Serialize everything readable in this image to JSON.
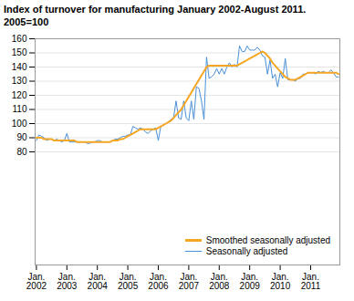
{
  "chart_data": {
    "type": "line",
    "title": "Index of turnover for manufacturing January 2002-August 2011.",
    "subtitle": "2005=100",
    "categories": [
      "Jan.\n2002",
      null,
      null,
      null,
      null,
      null,
      null,
      null,
      null,
      null,
      null,
      null,
      "Jan.\n2003",
      null,
      null,
      null,
      null,
      null,
      null,
      null,
      null,
      null,
      null,
      null,
      "Jan.\n2004",
      null,
      null,
      null,
      null,
      null,
      null,
      null,
      null,
      null,
      null,
      null,
      "Jan.\n2005",
      null,
      null,
      null,
      null,
      null,
      null,
      null,
      null,
      null,
      null,
      null,
      "Jan.\n2006",
      null,
      null,
      null,
      null,
      null,
      null,
      null,
      null,
      null,
      null,
      null,
      "Jan.\n2007",
      null,
      null,
      null,
      null,
      null,
      null,
      null,
      null,
      null,
      null,
      null,
      "Jan.\n2008",
      null,
      null,
      null,
      null,
      null,
      null,
      null,
      null,
      null,
      null,
      null,
      "Jan.\n2009",
      null,
      null,
      null,
      null,
      null,
      null,
      null,
      null,
      null,
      null,
      null,
      "Jan.\n2010",
      null,
      null,
      null,
      null,
      null,
      null,
      null,
      null,
      null,
      null,
      null,
      "Jan.\n2011",
      null,
      null,
      null,
      null,
      null,
      null,
      null,
      null,
      null,
      null,
      null
    ],
    "series": [
      {
        "name": "Smoothed seasonally adjusted",
        "color": "#F5A623",
        "values": [
          90,
          90,
          90,
          89,
          89,
          89,
          89,
          88,
          88,
          88,
          88,
          88,
          88,
          88,
          88,
          88,
          87,
          87,
          87,
          87,
          87,
          87,
          87,
          87,
          87,
          87,
          87,
          87,
          87,
          87,
          88,
          88,
          88,
          89,
          89,
          90,
          91,
          92,
          93,
          94,
          95,
          96,
          96,
          96,
          96,
          96,
          96,
          96,
          97,
          98,
          99,
          100,
          101,
          102,
          104,
          106,
          108,
          110,
          113,
          116,
          119,
          122,
          125,
          128,
          131,
          134,
          137,
          140,
          141,
          141,
          141,
          141,
          141,
          141,
          141,
          141,
          141,
          141,
          141,
          141,
          142,
          143,
          144,
          145,
          146,
          147,
          148,
          149,
          150,
          151,
          150,
          148,
          146,
          143,
          141,
          139,
          137,
          135,
          133,
          132,
          131,
          131,
          131,
          132,
          133,
          134,
          135,
          136,
          136,
          136,
          136,
          136,
          136,
          136,
          136,
          136,
          136,
          136,
          136,
          135
        ]
      },
      {
        "name": "Seasonally adjusted",
        "color": "#4A90D9",
        "values": [
          88,
          92,
          91,
          90,
          88,
          89,
          89,
          88,
          89,
          88,
          87,
          88,
          93,
          87,
          87,
          87,
          87,
          87,
          87,
          87,
          86,
          86,
          87,
          87,
          88,
          88,
          87,
          87,
          87,
          87,
          88,
          89,
          89,
          90,
          91,
          91,
          92,
          92,
          98,
          97,
          96,
          97,
          96,
          94,
          93,
          95,
          96,
          97,
          88,
          98,
          99,
          100,
          101,
          103,
          104,
          116,
          104,
          103,
          116,
          104,
          102,
          116,
          103,
          126,
          125,
          116,
          103,
          147,
          132,
          133,
          135,
          139,
          135,
          139,
          135,
          140,
          143,
          140,
          142,
          140,
          155,
          151,
          151,
          155,
          152,
          152,
          152,
          154,
          152,
          148,
          147,
          135,
          145,
          132,
          135,
          126,
          136,
          132,
          146,
          131,
          131,
          131,
          130,
          132,
          132,
          135,
          135,
          136,
          136,
          136,
          135,
          137,
          136,
          137,
          136,
          136,
          138,
          136,
          133,
          133
        ]
      }
    ],
    "ylim": [
      0,
      160
    ],
    "yticks": [
      80,
      90,
      100,
      110,
      120,
      130,
      140,
      150,
      160
    ],
    "grid": true,
    "legend": "lower right"
  }
}
